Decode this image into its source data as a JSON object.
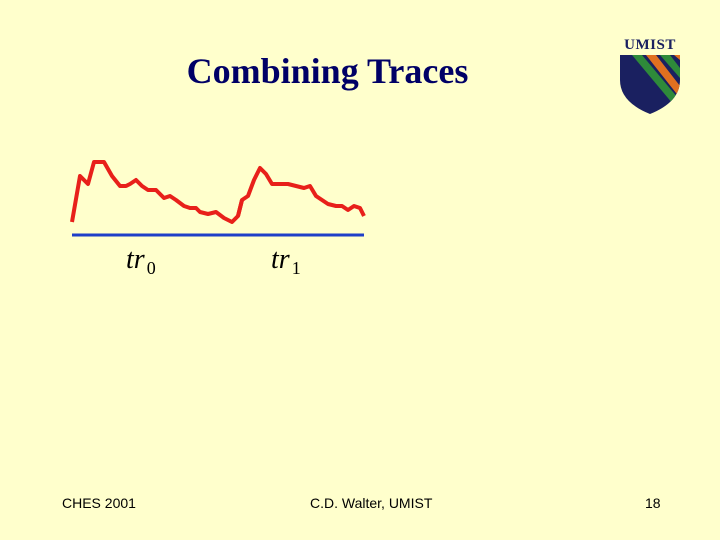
{
  "slide": {
    "title": "Combining Traces",
    "logo_text": "UMIST",
    "trace_labels": [
      {
        "base": "tr",
        "sub": "0"
      },
      {
        "base": "tr",
        "sub": "1"
      }
    ],
    "footer": {
      "left": "CHES 2001",
      "center": "C.D. Walter, UMIST",
      "right": "18"
    }
  },
  "colors": {
    "background": "#ffffcc",
    "title": "#000066",
    "trace": "#e8201a",
    "baseline": "#1f3fc8",
    "logo_navy": "#1a2060",
    "logo_orange": "#e07020",
    "logo_green": "#2e8a3a"
  }
}
